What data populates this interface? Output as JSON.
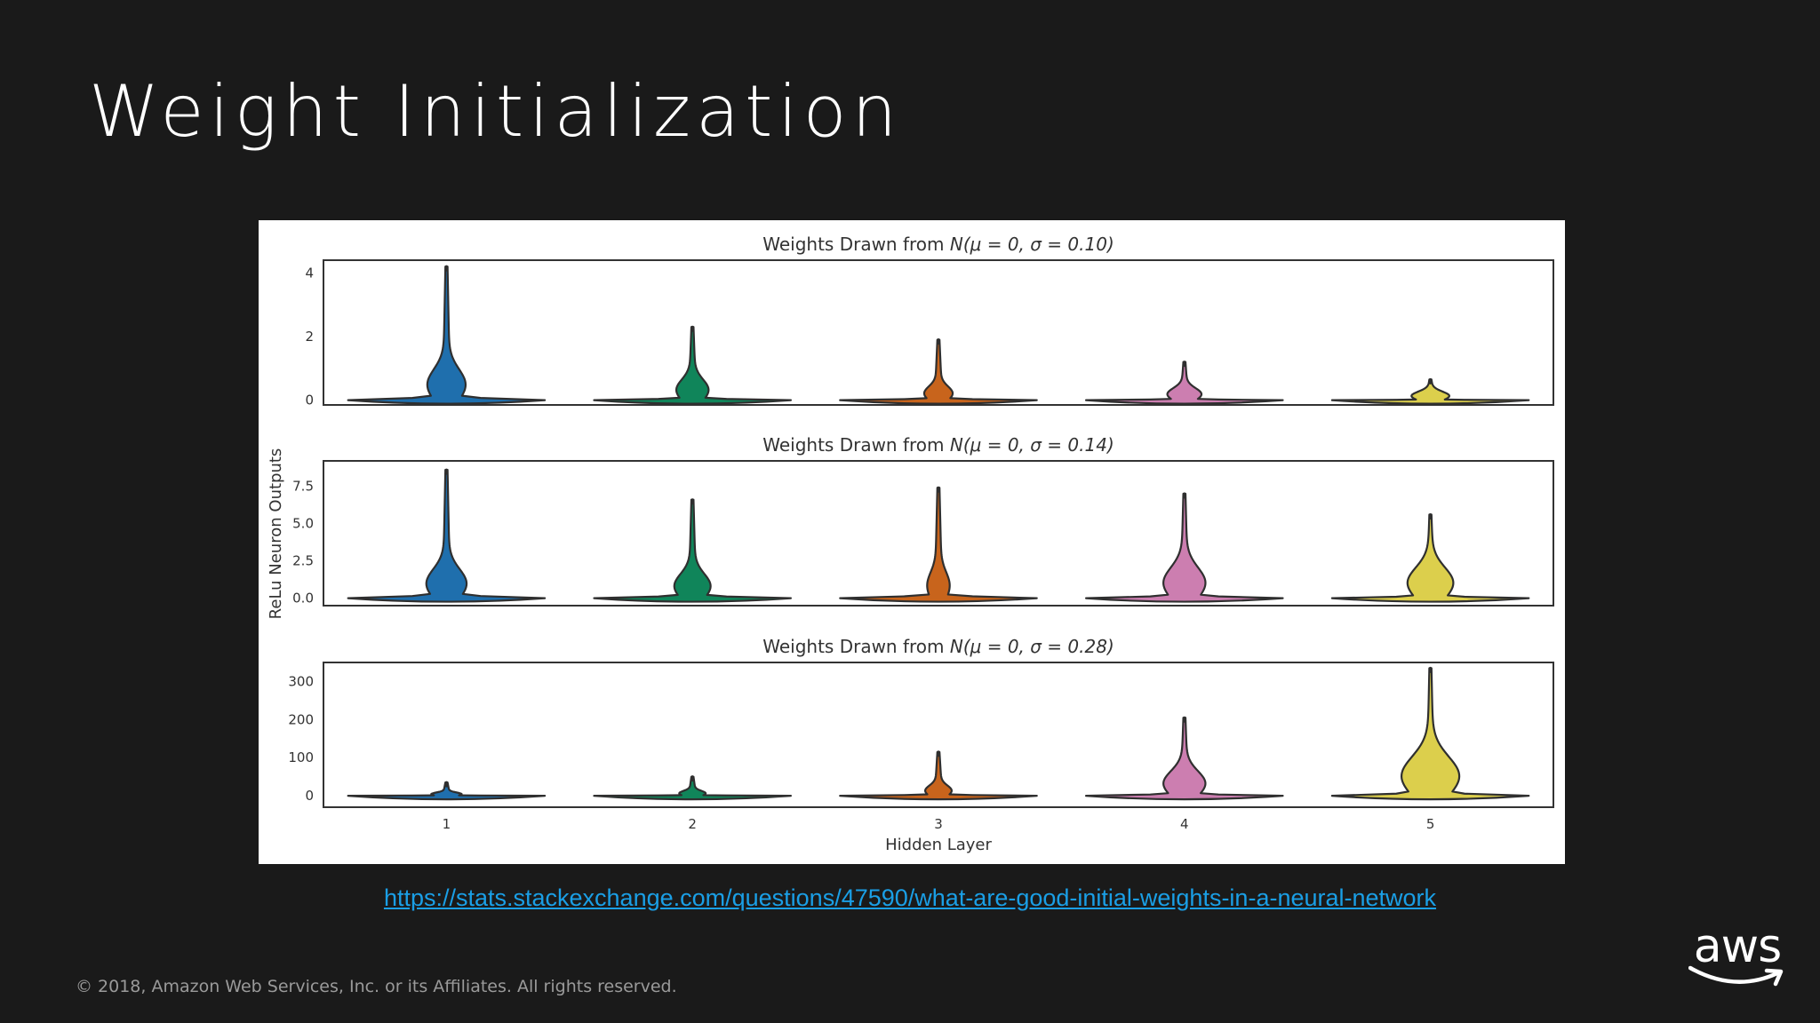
{
  "slide": {
    "title": "Weight Initialization",
    "source_link": "https://stats.stackexchange.com/questions/47590/what-are-good-initial-weights-in-a-neural-network",
    "copyright": "© 2018, Amazon Web Services, Inc. or its Affiliates. All rights reserved.",
    "logo_text": "aws"
  },
  "chart_data": {
    "type": "violin",
    "shared_ylabel": "ReLu Neuron Outputs",
    "xlabel": "Hidden Layer",
    "categories": [
      "1",
      "2",
      "3",
      "4",
      "5"
    ],
    "colors": [
      "#1f6fad",
      "#10855a",
      "#c8641c",
      "#cc7eb0",
      "#dccf4c"
    ],
    "panels": [
      {
        "title_prefix": "Weights Drawn from ",
        "title_formula": "N(μ = 0, σ = 0.10)",
        "ylim": [
          -0.15,
          4.4
        ],
        "yticks": [
          {
            "v": 0,
            "label": "0"
          },
          {
            "v": 2,
            "label": "2"
          },
          {
            "v": 4,
            "label": "4"
          }
        ],
        "violins": [
          {
            "max": 4.2,
            "peak": 0.9,
            "bulge": 0.16
          },
          {
            "max": 2.3,
            "peak": 0.6,
            "bulge": 0.13
          },
          {
            "max": 1.9,
            "peak": 0.4,
            "bulge": 0.11
          },
          {
            "max": 1.2,
            "peak": 0.35,
            "bulge": 0.14
          },
          {
            "max": 0.65,
            "peak": 0.25,
            "bulge": 0.16
          }
        ]
      },
      {
        "title_prefix": "Weights Drawn from ",
        "title_formula": "N(μ = 0, σ = 0.14)",
        "ylim": [
          -0.5,
          9.2
        ],
        "yticks": [
          {
            "v": 0,
            "label": "0.0"
          },
          {
            "v": 2.5,
            "label": "2.5"
          },
          {
            "v": 5,
            "label": "5.0"
          },
          {
            "v": 7.5,
            "label": "7.5"
          }
        ],
        "violins": [
          {
            "max": 8.6,
            "peak": 1.8,
            "bulge": 0.17
          },
          {
            "max": 6.6,
            "peak": 1.5,
            "bulge": 0.15
          },
          {
            "max": 7.4,
            "peak": 1.6,
            "bulge": 0.08
          },
          {
            "max": 7.0,
            "peak": 1.9,
            "bulge": 0.18
          },
          {
            "max": 5.6,
            "peak": 1.9,
            "bulge": 0.2
          }
        ]
      },
      {
        "title_prefix": "Weights Drawn from ",
        "title_formula": "N(μ = 0, σ = 0.28)",
        "ylim": [
          -30,
          350
        ],
        "yticks": [
          {
            "v": 0,
            "label": "0"
          },
          {
            "v": 100,
            "label": "100"
          },
          {
            "v": 200,
            "label": "200"
          },
          {
            "v": 300,
            "label": "300"
          }
        ],
        "violins": [
          {
            "max": 35,
            "peak": 8,
            "bulge": 0.12
          },
          {
            "max": 50,
            "peak": 12,
            "bulge": 0.1
          },
          {
            "max": 115,
            "peak": 25,
            "bulge": 0.1
          },
          {
            "max": 205,
            "peak": 60,
            "bulge": 0.18
          },
          {
            "max": 335,
            "peak": 95,
            "bulge": 0.26
          }
        ]
      }
    ]
  }
}
